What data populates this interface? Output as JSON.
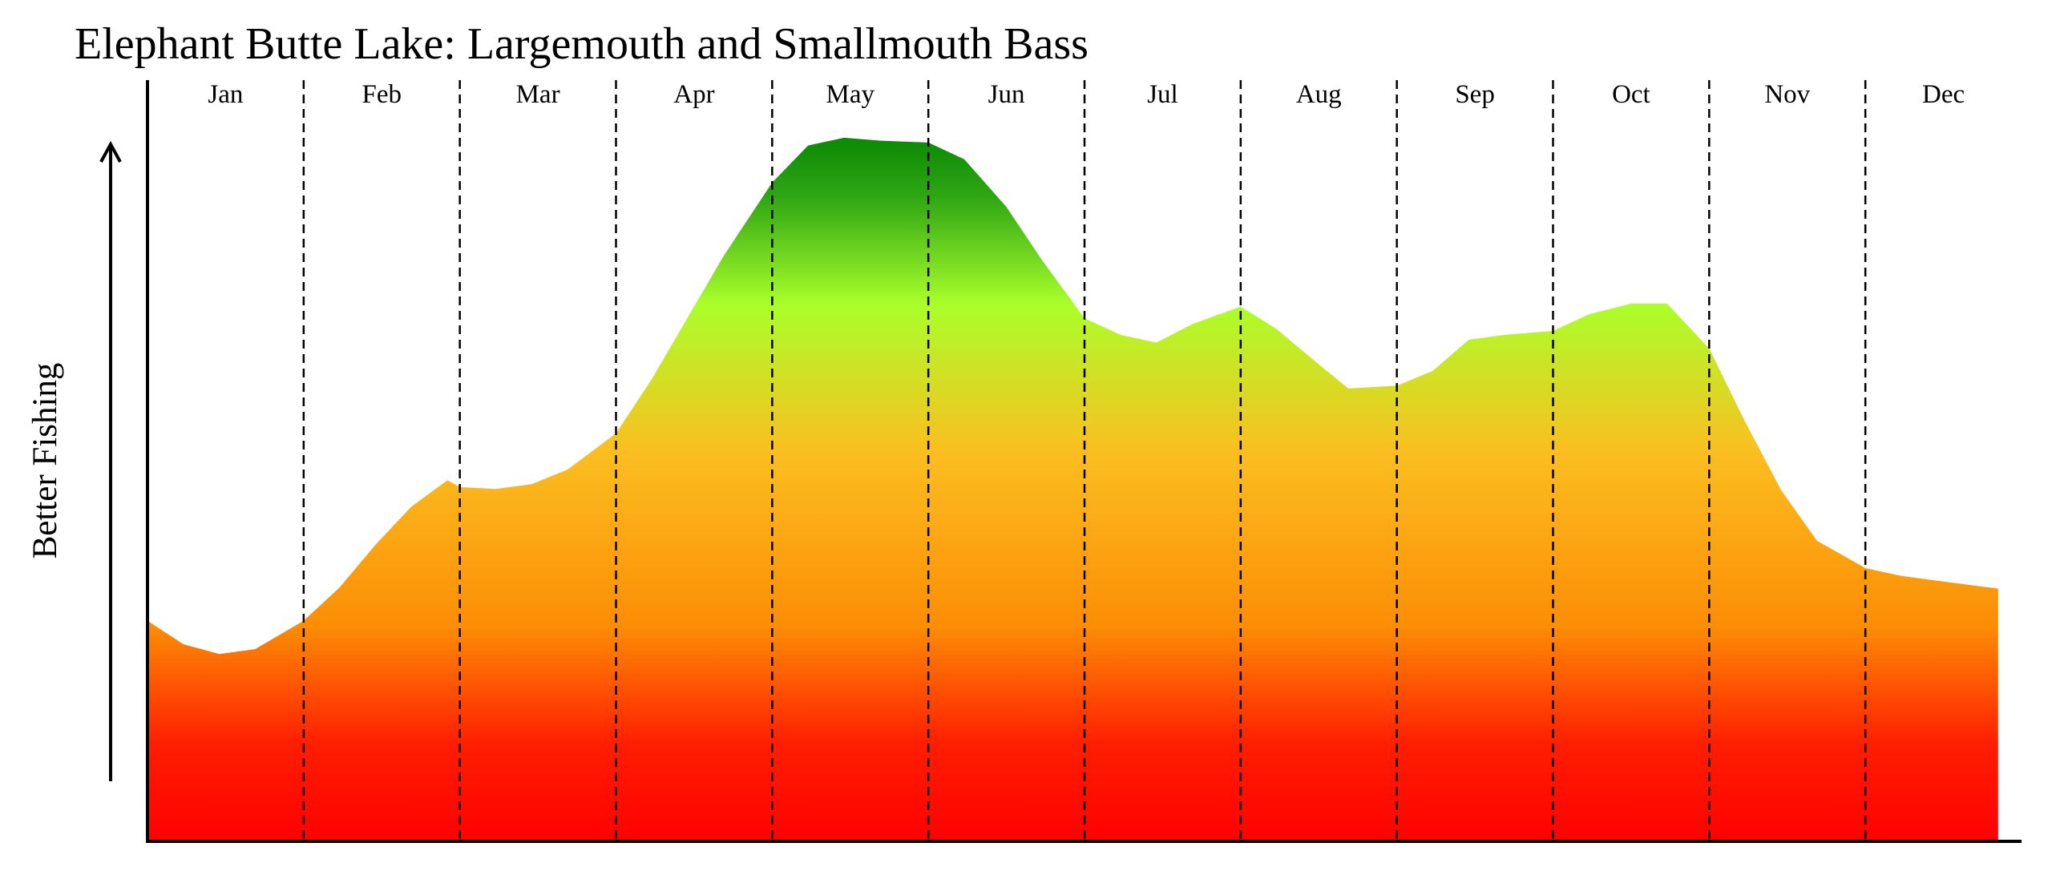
{
  "chart_data": {
    "type": "area",
    "title": "Elephant Butte Lake: Largemouth and Smallmouth Bass",
    "ylabel": "Better Fishing",
    "categories": [
      "Jan",
      "Feb",
      "Mar",
      "Apr",
      "May",
      "Jun",
      "Jul",
      "Aug",
      "Sep",
      "Oct",
      "Nov",
      "Dec"
    ],
    "x": [
      0.0,
      0.23,
      0.46,
      0.69,
      1.0,
      1.23,
      1.46,
      1.69,
      1.92,
      2.0,
      2.23,
      2.46,
      2.69,
      3.0,
      3.23,
      3.46,
      3.69,
      4.0,
      4.23,
      4.46,
      4.69,
      5.0,
      5.23,
      5.5,
      5.73,
      6.0,
      6.23,
      6.46,
      6.69,
      7.0,
      7.23,
      7.46,
      7.69,
      8.0,
      8.23,
      8.46,
      8.69,
      9.0,
      9.23,
      9.5,
      9.73,
      10.0,
      10.23,
      10.46,
      10.69,
      11.0,
      11.23,
      11.46,
      11.85
    ],
    "values": [
      22.6,
      20.2,
      19.2,
      19.7,
      22.6,
      26.0,
      30.4,
      34.3,
      37.0,
      36.3,
      36.1,
      36.6,
      38.1,
      41.8,
      47.4,
      53.7,
      60.0,
      67.5,
      71.3,
      72.1,
      71.8,
      71.6,
      69.9,
      65.0,
      59.5,
      53.6,
      51.9,
      51.1,
      53.0,
      54.8,
      52.5,
      49.4,
      46.4,
      46.7,
      48.2,
      51.4,
      51.9,
      52.3,
      54.0,
      55.1,
      55.1,
      50.5,
      43.0,
      36.0,
      30.8,
      28.0,
      27.2,
      26.7,
      25.9
    ],
    "ylim": [
      0,
      78
    ],
    "grid": false,
    "legend": "none",
    "gradient_stops": [
      {
        "value": 0,
        "color": "#ff0000"
      },
      {
        "value": 10,
        "color": "#ff1e00"
      },
      {
        "value": 22,
        "color": "#fc8d05"
      },
      {
        "value": 40,
        "color": "#fbbf20"
      },
      {
        "value": 55,
        "color": "#aaff2a"
      },
      {
        "value": 66,
        "color": "#2fa614"
      },
      {
        "value": 74,
        "color": "#008000"
      }
    ]
  }
}
